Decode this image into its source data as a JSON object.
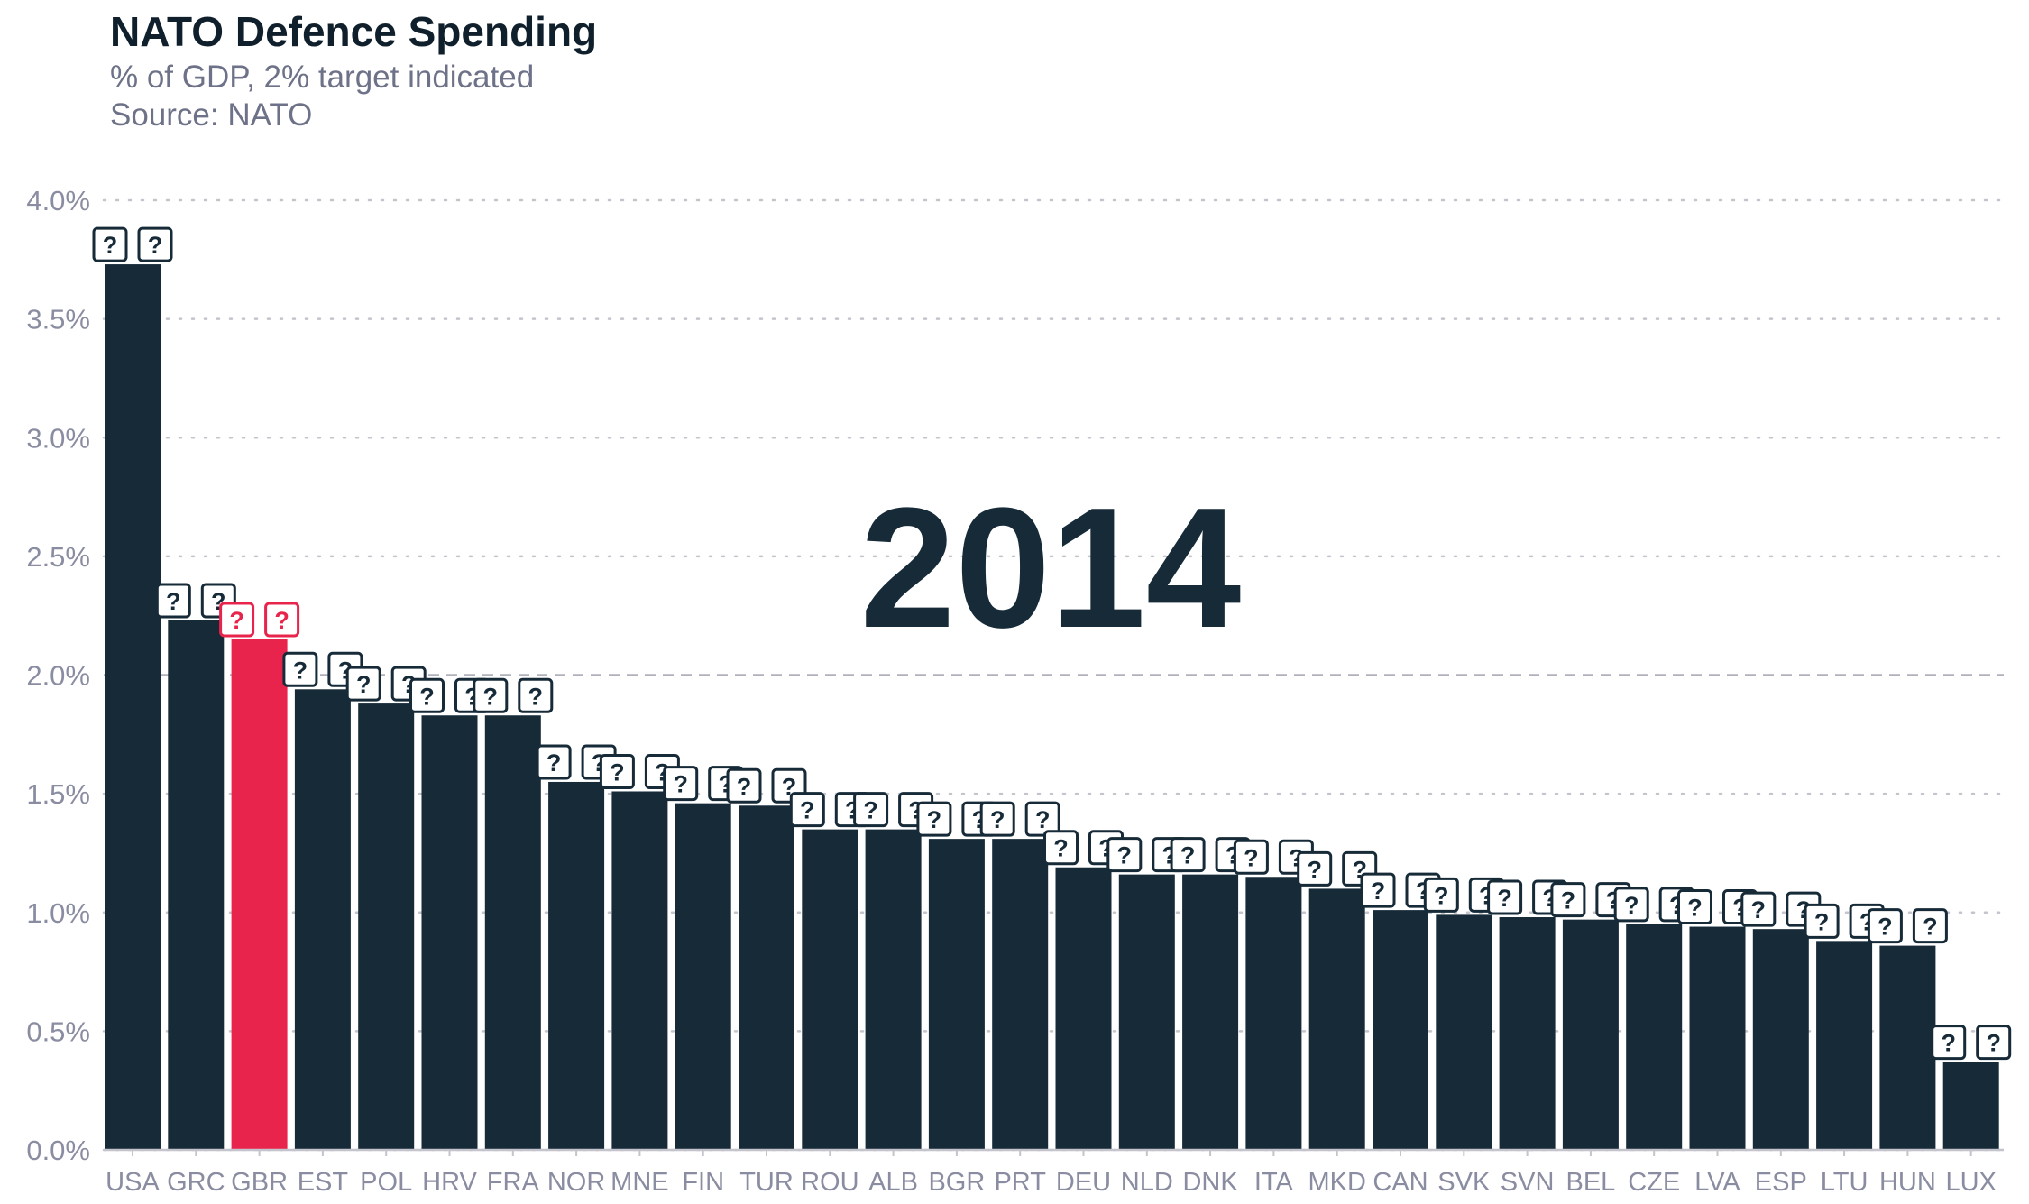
{
  "chart_data": {
    "type": "bar",
    "title": "NATO Defence Spending",
    "subtitle": "% of GDP, 2% target indicated",
    "source": "Source: NATO",
    "year_label": "2014",
    "xlabel": "",
    "ylabel": "",
    "ylim": [
      0,
      4
    ],
    "yticks": [
      0,
      0.5,
      1.0,
      1.5,
      2.0,
      2.5,
      3.0,
      3.5,
      4.0
    ],
    "ytick_labels": [
      "0.0%",
      "0.5%",
      "1.0%",
      "1.5%",
      "2.0%",
      "2.5%",
      "3.0%",
      "3.5%",
      "4.0%"
    ],
    "target_line": 2.0,
    "grid": "horizontal dotted",
    "categories": [
      "USA",
      "GRC",
      "GBR",
      "EST",
      "POL",
      "HRV",
      "FRA",
      "NOR",
      "MNE",
      "FIN",
      "TUR",
      "ROU",
      "ALB",
      "BGR",
      "PRT",
      "DEU",
      "NLD",
      "DNK",
      "ITA",
      "MKD",
      "CAN",
      "SVK",
      "SVN",
      "BEL",
      "CZE",
      "LVA",
      "ESP",
      "LTU",
      "HUN",
      "LUX"
    ],
    "values": [
      3.73,
      2.23,
      2.15,
      1.94,
      1.88,
      1.83,
      1.83,
      1.55,
      1.51,
      1.46,
      1.45,
      1.35,
      1.35,
      1.31,
      1.31,
      1.19,
      1.16,
      1.16,
      1.15,
      1.1,
      1.01,
      0.99,
      0.98,
      0.97,
      0.95,
      0.94,
      0.93,
      0.88,
      0.86,
      0.37
    ],
    "data_labels": [
      "??",
      "??",
      "??",
      "??",
      "??",
      "??",
      "??",
      "??",
      "??",
      "??",
      "??",
      "??",
      "??",
      "??",
      "??",
      "??",
      "??",
      "??",
      "??",
      "??",
      "??",
      "??",
      "??",
      "??",
      "??",
      "??",
      "??",
      "??",
      "??",
      "??"
    ],
    "highlight": "GBR",
    "colors": {
      "bar": "#162a38",
      "highlight": "#e8244c",
      "axis_text": "#8a8da1",
      "grid": "#c3c4cc"
    }
  }
}
